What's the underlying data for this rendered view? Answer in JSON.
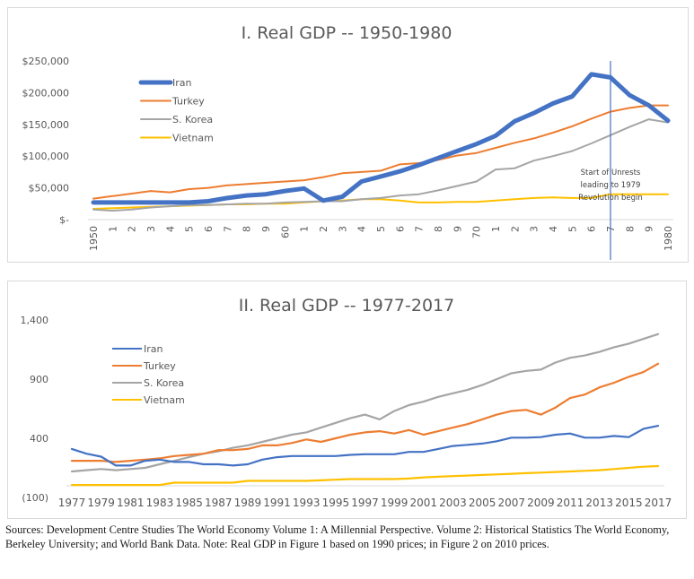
{
  "chart_data": [
    {
      "type": "line",
      "title": "I. Real GDP -- 1950-1980",
      "xlabel": "",
      "ylabel": "",
      "ylim": [
        0,
        250000
      ],
      "yticks": [
        0,
        50000,
        100000,
        150000,
        200000,
        250000
      ],
      "ytick_labels": [
        "$-",
        "$50,000",
        "$100,000",
        "$150,000",
        "$200,000",
        "$250,000"
      ],
      "x": [
        1950,
        1951,
        1952,
        1953,
        1954,
        1955,
        1956,
        1957,
        1958,
        1959,
        1960,
        1961,
        1962,
        1963,
        1964,
        1965,
        1966,
        1967,
        1968,
        1969,
        1970,
        1971,
        1972,
        1973,
        1974,
        1975,
        1976,
        1977,
        1978,
        1979,
        1980
      ],
      "xtick_labels": [
        "1950",
        "1",
        "2",
        "3",
        "4",
        "5",
        "6",
        "7",
        "8",
        "9",
        "60",
        "1",
        "2",
        "3",
        "4",
        "5",
        "6",
        "7",
        "8",
        "9",
        "70",
        "1",
        "2",
        "3",
        "4",
        "5",
        "6",
        "7",
        "8",
        "9",
        "1980"
      ],
      "grid": false,
      "legend": "top-left",
      "series": [
        {
          "name": "Iran",
          "color": "#4472C4",
          "values": [
            27000,
            27000,
            27000,
            27000,
            27000,
            27000,
            29000,
            34000,
            38000,
            40000,
            45000,
            49000,
            30000,
            36000,
            60000,
            68000,
            76000,
            86000,
            97000,
            108000,
            119000,
            132000,
            155000,
            168000,
            183000,
            194000,
            229000,
            224000,
            196000,
            180000,
            156000
          ]
        },
        {
          "name": "Turkey",
          "color": "#ED7D31",
          "values": [
            33000,
            37000,
            41000,
            45000,
            43000,
            48000,
            50000,
            54000,
            56000,
            58000,
            60000,
            62000,
            67000,
            73000,
            75000,
            77000,
            87000,
            89000,
            94000,
            101000,
            105000,
            113000,
            121000,
            128000,
            137000,
            147000,
            159000,
            170000,
            176000,
            180000,
            180000
          ]
        },
        {
          "name": "S. Korea",
          "color": "#A5A5A5",
          "values": [
            16000,
            14000,
            16000,
            19000,
            21000,
            23000,
            23000,
            24000,
            25000,
            25000,
            27000,
            28000,
            29000,
            29000,
            32000,
            34000,
            38000,
            40000,
            46000,
            53000,
            60000,
            79000,
            81000,
            93000,
            100000,
            108000,
            120000,
            133000,
            146000,
            158000,
            153000
          ]
        },
        {
          "name": "Vietnam",
          "color": "#FFC000",
          "values": [
            17000,
            18000,
            19000,
            20000,
            21000,
            22000,
            23000,
            24000,
            24000,
            25000,
            25000,
            27000,
            29000,
            30000,
            32000,
            32000,
            30000,
            27000,
            27000,
            28000,
            28000,
            30000,
            32000,
            34000,
            35000,
            34000,
            34000,
            40000,
            40000,
            40000,
            40000
          ]
        }
      ],
      "annotations": [
        {
          "text_lines": [
            "Start of Unrests",
            "leading to 1979",
            "Revolution begin"
          ],
          "x": 1977,
          "marker": "vertical-line"
        }
      ]
    },
    {
      "type": "line",
      "title": "II. Real GDP -- 1977-2017",
      "xlabel": "",
      "ylabel": "",
      "ylim": [
        -100,
        1400
      ],
      "yticks": [
        -100,
        400,
        900,
        1400
      ],
      "ytick_labels": [
        "(100)",
        "400",
        "900",
        "1,400"
      ],
      "x": [
        1977,
        1978,
        1979,
        1980,
        1981,
        1982,
        1983,
        1984,
        1985,
        1986,
        1987,
        1988,
        1989,
        1990,
        1991,
        1992,
        1993,
        1994,
        1995,
        1996,
        1997,
        1998,
        1999,
        2000,
        2001,
        2002,
        2003,
        2004,
        2005,
        2006,
        2007,
        2008,
        2009,
        2010,
        2011,
        2012,
        2013,
        2014,
        2015,
        2016,
        2017
      ],
      "xtick_labels": [
        "1977",
        "1979",
        "1981",
        "1983",
        "1985",
        "1987",
        "1989",
        "1991",
        "1993",
        "1995",
        "1997",
        "1999",
        "2001",
        "2003",
        "2005",
        "2007",
        "2009",
        "2011",
        "2013",
        "2015",
        "2017"
      ],
      "grid": false,
      "legend": "top-left",
      "series": [
        {
          "name": "Iran",
          "color": "#4472C4",
          "values": [
            310,
            270,
            245,
            170,
            170,
            210,
            220,
            200,
            200,
            180,
            180,
            170,
            180,
            220,
            240,
            250,
            250,
            250,
            250,
            260,
            265,
            265,
            265,
            285,
            285,
            310,
            335,
            345,
            355,
            375,
            405,
            405,
            410,
            430,
            440,
            405,
            405,
            420,
            410,
            480,
            505
          ]
        },
        {
          "name": "Turkey",
          "color": "#ED7D31",
          "values": [
            210,
            210,
            210,
            200,
            210,
            220,
            230,
            250,
            260,
            270,
            300,
            300,
            310,
            340,
            340,
            360,
            390,
            370,
            400,
            430,
            450,
            460,
            440,
            470,
            430,
            460,
            490,
            520,
            560,
            600,
            630,
            640,
            600,
            660,
            740,
            770,
            830,
            870,
            920,
            960,
            1030
          ]
        },
        {
          "name": "S. Korea",
          "color": "#A5A5A5",
          "values": [
            120,
            130,
            140,
            130,
            140,
            150,
            180,
            210,
            240,
            270,
            290,
            320,
            340,
            370,
            400,
            430,
            450,
            490,
            530,
            570,
            600,
            560,
            630,
            680,
            710,
            750,
            780,
            810,
            850,
            900,
            950,
            970,
            980,
            1040,
            1080,
            1100,
            1130,
            1170,
            1200,
            1240,
            1280
          ]
        },
        {
          "name": "Vietnam",
          "color": "#FFC000",
          "values": [
            5,
            5,
            5,
            5,
            5,
            5,
            5,
            25,
            25,
            25,
            25,
            25,
            40,
            40,
            40,
            40,
            40,
            45,
            50,
            55,
            55,
            55,
            55,
            60,
            70,
            75,
            80,
            85,
            90,
            95,
            100,
            105,
            110,
            115,
            120,
            125,
            130,
            140,
            150,
            160,
            165
          ]
        }
      ]
    }
  ],
  "caption": "Sources: Development Centre Studies The World Economy Volume 1: A Millennial Perspective. Volume 2: Historical Statistics The World Economy, Berkeley University; and World Bank Data. Note: Real GDP in Figure 1 based on 1990 prices; in Figure 2 on 2010 prices."
}
